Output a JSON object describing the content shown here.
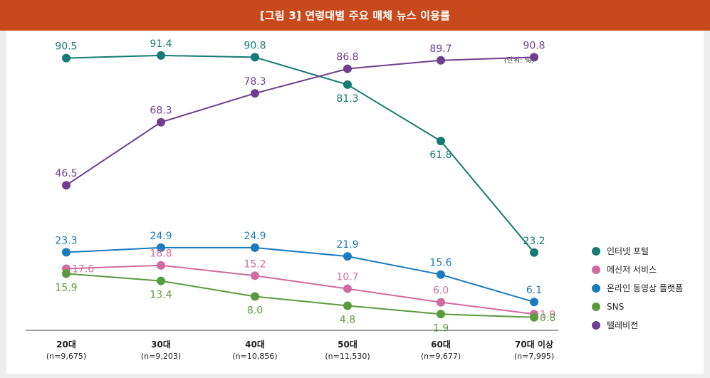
{
  "header": {
    "title": "[그림 3] 연령대별 주요 매체 뉴스 이용률"
  },
  "chart_data": {
    "type": "line",
    "title": "[그림 3] 연령대별 주요 매체 뉴스 이용률",
    "unit_label": "(단위: %)",
    "categories": [
      "20대",
      "30대",
      "40대",
      "50대",
      "60대",
      "70대 이상"
    ],
    "category_n": [
      "(n=9,675)",
      "(n=9,203)",
      "(n=10,856)",
      "(n=11,530)",
      "(n=9,677)",
      "(n=7,995)"
    ],
    "ylim": [
      0,
      100
    ],
    "grid": false,
    "legend_position": "right",
    "series": [
      {
        "name": "인터넷 포털",
        "color": "#157a73",
        "values": [
          90.5,
          91.4,
          90.8,
          81.3,
          61.8,
          23.2
        ],
        "label_pos": [
          "above",
          "above",
          "above",
          "below",
          "below",
          "above"
        ]
      },
      {
        "name": "메신저 서비스",
        "color": "#cf6b9f",
        "values": [
          17.6,
          18.8,
          15.2,
          10.7,
          6.0,
          1.9
        ],
        "label_pos": [
          "right",
          "above",
          "above",
          "above",
          "above",
          "right"
        ]
      },
      {
        "name": "온라인 동영상 플랫폼",
        "color": "#1b7bbf",
        "values": [
          23.3,
          24.9,
          24.9,
          21.9,
          15.6,
          6.1
        ],
        "label_pos": [
          "above",
          "above",
          "above",
          "above",
          "above",
          "above"
        ]
      },
      {
        "name": "SNS",
        "color": "#5a9a3e",
        "values": [
          15.9,
          13.4,
          8.0,
          4.8,
          1.9,
          0.8
        ],
        "label_pos": [
          "below",
          "below",
          "below",
          "below",
          "below",
          "right"
        ]
      },
      {
        "name": "텔레비전",
        "color": "#6e3f8f",
        "values": [
          46.5,
          68.3,
          78.3,
          86.8,
          89.7,
          90.8
        ],
        "label_pos": [
          "above",
          "above",
          "above",
          "above",
          "above",
          "above"
        ]
      }
    ]
  }
}
